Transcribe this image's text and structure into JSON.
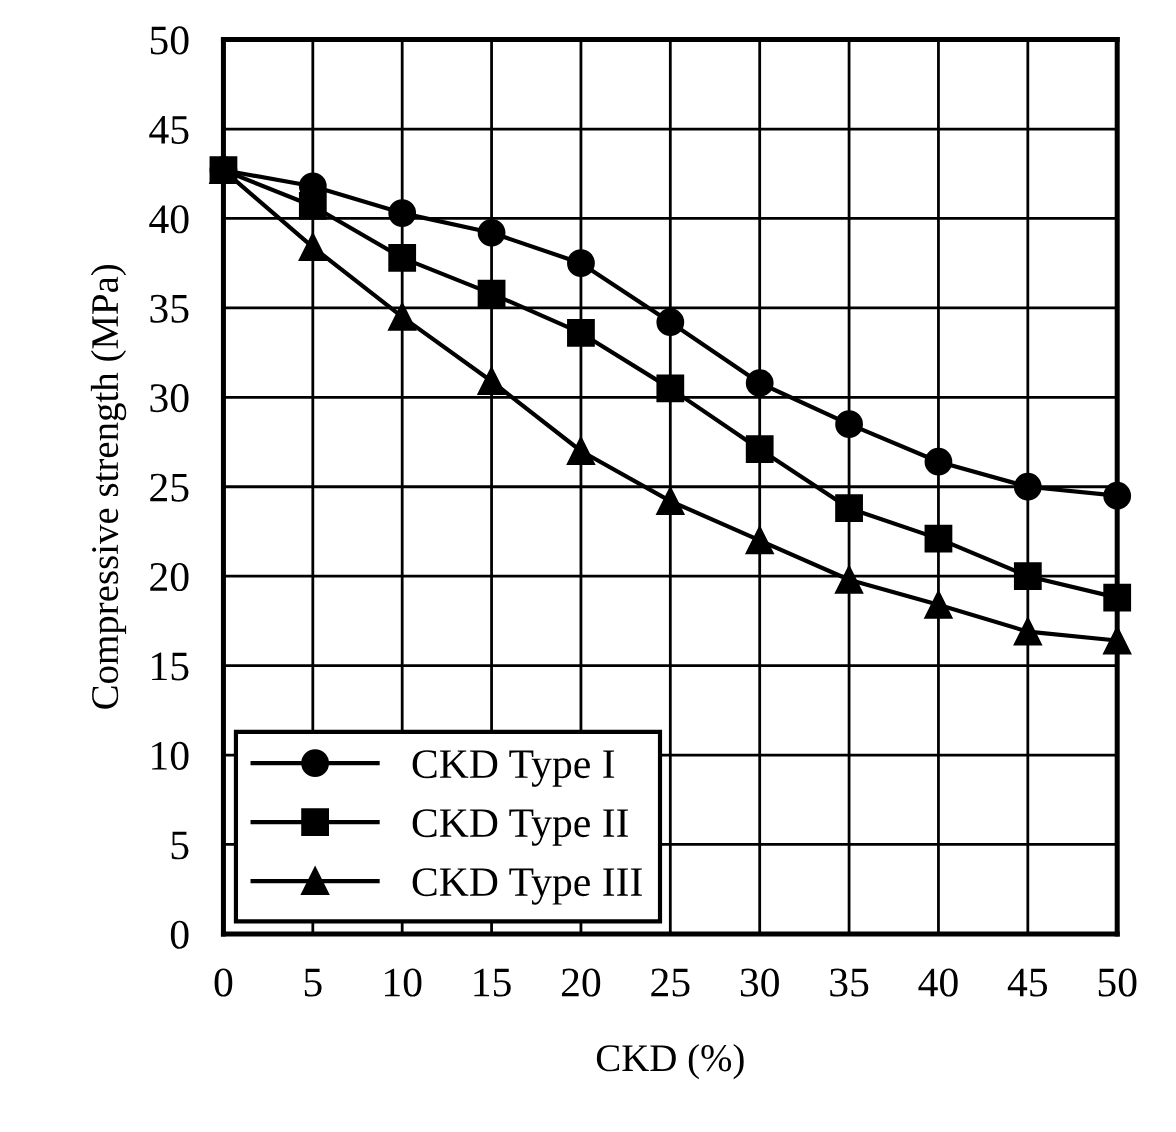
{
  "chart_data": {
    "type": "line",
    "xlabel": "CKD (%)",
    "ylabel": "Compressive strength (MPa)",
    "x": [
      0,
      5,
      10,
      15,
      20,
      25,
      30,
      35,
      40,
      45,
      50
    ],
    "series": [
      {
        "name": "CKD Type I",
        "color": "#000000",
        "marker": "circle",
        "values": [
          42.7,
          41.8,
          40.3,
          39.2,
          37.5,
          34.2,
          30.8,
          28.5,
          26.4,
          25.0,
          24.5
        ]
      },
      {
        "name": "CKD Type II",
        "color": "#000000",
        "marker": "square",
        "values": [
          42.7,
          40.7,
          37.8,
          35.8,
          33.6,
          30.5,
          27.1,
          23.8,
          22.1,
          20.0,
          18.8
        ]
      },
      {
        "name": "CKD Type III",
        "color": "#000000",
        "marker": "triangle",
        "values": [
          42.7,
          38.4,
          34.5,
          30.9,
          27.0,
          24.2,
          22.0,
          19.8,
          18.4,
          16.9,
          16.4
        ]
      }
    ],
    "xlim": [
      0,
      50
    ],
    "xticks": [
      0,
      5,
      10,
      15,
      20,
      25,
      30,
      35,
      40,
      45,
      50
    ],
    "ylim": [
      0,
      50
    ],
    "yticks": [
      0,
      5,
      10,
      15,
      20,
      25,
      30,
      35,
      40,
      45,
      50
    ],
    "grid": true,
    "legend": "bottom left",
    "line_style": "solid"
  }
}
